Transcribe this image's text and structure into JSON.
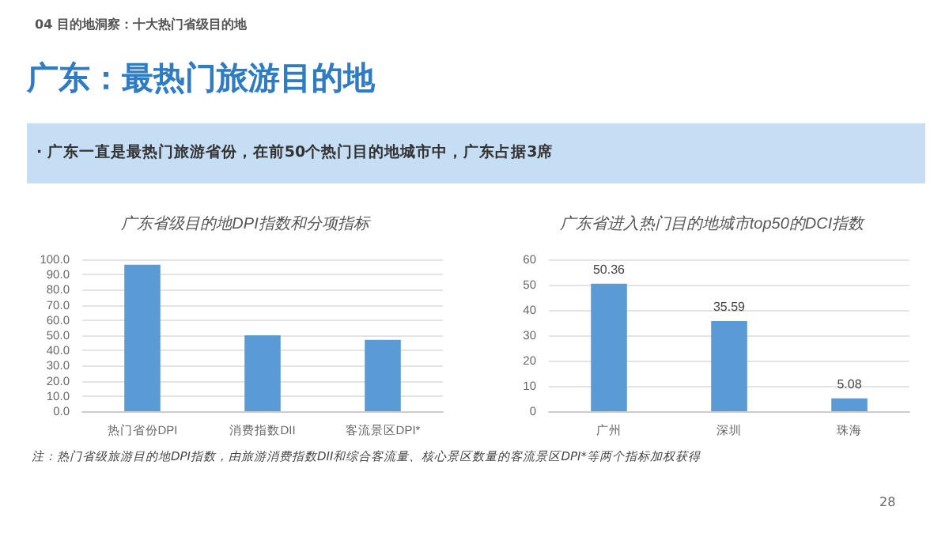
{
  "chart_data": [
    {
      "type": "bar",
      "title": "广东省级目的地DPI指数和分项指标",
      "categories": [
        "热门省份DPI",
        "消费指数DII",
        "客流景区DPI*"
      ],
      "values": [
        96.5,
        50,
        47
      ],
      "color": "#5b9bd5",
      "ylim": [
        0,
        100
      ],
      "yticks": [
        {
          "value": 0,
          "label": "0.0"
        },
        {
          "value": 10,
          "label": "10.0"
        },
        {
          "value": 20,
          "label": "20.0"
        },
        {
          "value": 30,
          "label": "30.0"
        },
        {
          "value": 40,
          "label": "40.0"
        },
        {
          "value": 50,
          "label": "50.0"
        },
        {
          "value": 60,
          "label": "60.0"
        },
        {
          "value": 70,
          "label": "70.0"
        },
        {
          "value": 80,
          "label": "80.0"
        },
        {
          "value": 90,
          "label": "90.0"
        },
        {
          "value": 100,
          "label": "100.0"
        }
      ],
      "grid": "y",
      "annotations": [
        "04 目的地洞察：十大热门省级目的地",
        "广东：最热门旅游目的地",
        "· 广东一直是最热门旅游省份，在前50个热门目的地城市中，广东占据3席",
        "注：热门省级旅游目的地DPI指数，由旅游消费指数DII和综合客流量、核心景区数量的客流景区DPI*等两个指标加权获得",
        "28"
      ]
    },
    {
      "type": "bar",
      "title": "广东省进入热门目的地城市top50的DCI指数",
      "categories": [
        "广州",
        "深圳",
        "珠海"
      ],
      "values": [
        50.36,
        35.59,
        5.08
      ],
      "color": "#5b9bd5",
      "ylim": [
        0,
        60
      ],
      "yticks": [
        0,
        10,
        20,
        30,
        40,
        50,
        60
      ],
      "grid": "y",
      "data_labels": true
    }
  ]
}
